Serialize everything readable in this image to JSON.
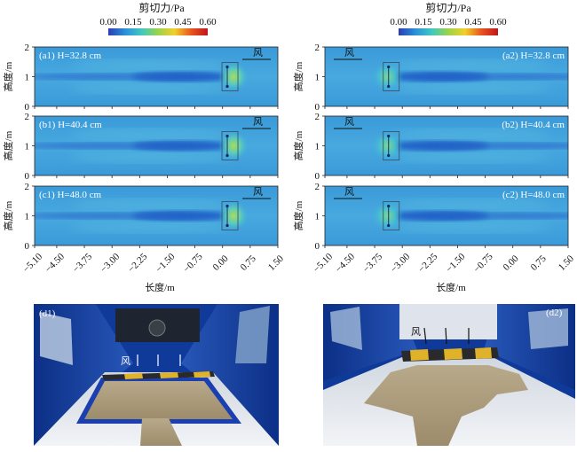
{
  "colorbar": {
    "title": "剪切力/Pa",
    "ticks": [
      "0.00",
      "0.15",
      "0.30",
      "0.45",
      "0.60"
    ],
    "colors": [
      "#2b3cb5",
      "#2a8fd8",
      "#3fc8c0",
      "#9bd34a",
      "#f1d02b",
      "#e8541e",
      "#c0151b"
    ]
  },
  "chart_data": [
    {
      "type": "heatmap",
      "layout": "3 rows × 2 columns of shear-stress fields",
      "xlabel": "长度/m",
      "ylabel": "高度/m",
      "xlim": [
        -5.1,
        1.5
      ],
      "ylim": [
        0,
        2
      ],
      "x_ticks": [
        "−5.10",
        "−4.50",
        "−3.75",
        "−3.00",
        "−2.25",
        "−1.50",
        "−0.75",
        "0.00",
        "0.75",
        "1.50"
      ],
      "y_ticks": [
        "0",
        "1",
        "2"
      ],
      "wind_label": "风",
      "panels": [
        {
          "label": "(a1) H=32.8 cm",
          "column": 1,
          "row": 1,
          "obstacle_x": 0.2,
          "wind_side": "right"
        },
        {
          "label": "(b1) H=40.4 cm",
          "column": 1,
          "row": 2,
          "obstacle_x": 0.2,
          "wind_side": "right"
        },
        {
          "label": "(c1) H=48.0 cm",
          "column": 1,
          "row": 3,
          "obstacle_x": 0.2,
          "wind_side": "right"
        },
        {
          "label": "(a2) H=32.8 cm",
          "column": 2,
          "row": 1,
          "obstacle_x": -3.3,
          "wind_side": "left"
        },
        {
          "label": "(b2) H=40.4 cm",
          "column": 2,
          "row": 2,
          "obstacle_x": -3.3,
          "wind_side": "left"
        },
        {
          "label": "(c2) H=48.0 cm",
          "column": 2,
          "row": 3,
          "obstacle_x": -3.3,
          "wind_side": "left"
        }
      ]
    }
  ],
  "photos": [
    {
      "label": "(d1)",
      "wind_label": "风"
    },
    {
      "label": "(d2)",
      "wind_label": "风"
    }
  ]
}
